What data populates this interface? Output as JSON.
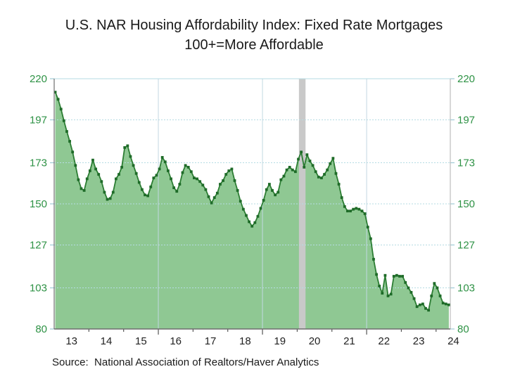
{
  "title": {
    "line1": "U.S. NAR Housing Affordability Index: Fixed Rate Mortgages",
    "line2": "100+=More Affordable"
  },
  "source": "Source:  National Association of Realtors/Haver Analytics",
  "chart_data": {
    "type": "area",
    "series_name": "NAR Housing Affordability Index, Fixed Rate Mortgages",
    "marker": "square",
    "x_frequency": "monthly",
    "x_start": "2013-01",
    "x_end": "2024-05",
    "values": [
      212.5,
      208.5,
      203,
      196.5,
      190.5,
      185,
      179,
      171.5,
      163.5,
      158.5,
      157.5,
      164,
      168.5,
      174.5,
      169.5,
      166.5,
      162.5,
      156.5,
      152.5,
      153,
      156.5,
      164,
      166.5,
      170.5,
      181.5,
      182.5,
      176.5,
      171.5,
      167,
      162,
      158,
      155,
      154.5,
      159.5,
      164.5,
      166,
      169.5,
      176,
      173.5,
      168.5,
      164,
      159,
      157,
      161,
      167.5,
      171.5,
      170.5,
      168,
      164.5,
      164,
      162.5,
      160.5,
      158,
      154,
      150.5,
      153.5,
      156,
      161,
      163,
      166.5,
      168.5,
      169.5,
      163,
      157.5,
      151.5,
      147,
      143.5,
      140,
      137.5,
      139.5,
      143,
      147.5,
      152,
      158,
      161,
      157.5,
      155,
      156.5,
      163.5,
      165.5,
      169,
      170.5,
      169,
      168,
      175,
      179,
      170.5,
      177.5,
      174,
      171.5,
      168,
      165,
      164.5,
      166.5,
      169,
      172.5,
      175.5,
      167,
      161,
      153.5,
      148.5,
      146,
      146,
      147,
      147.5,
      147,
      146,
      144.5,
      137,
      130.5,
      119,
      110.5,
      104,
      100,
      110,
      98.5,
      99.5,
      109.5,
      110,
      109.5,
      109.5,
      106,
      103,
      100.5,
      97,
      92.5,
      93.5,
      94,
      91.5,
      90.5,
      98.5,
      105.5,
      103,
      98.5,
      94.5,
      94,
      93.5
    ],
    "x_tick_labels": [
      "13",
      "14",
      "15",
      "16",
      "17",
      "18",
      "19",
      "20",
      "21",
      "22",
      "23",
      "24"
    ],
    "y_ticks": [
      80,
      103,
      127,
      150,
      173,
      197,
      220
    ],
    "ylim": [
      80,
      220
    ],
    "xlim_years": [
      2013.0,
      2024.41
    ],
    "vertical_gridline_years": [
      2016,
      2019,
      2022
    ],
    "recession_band": {
      "start_year": 2020.05,
      "end_year": 2020.24
    },
    "grid": true,
    "legend_position": "none",
    "y_axis_sides": "both",
    "colors": {
      "area": "#8fc893",
      "line": "#2c7d33",
      "marker": "#1e6b28",
      "axis_text": "#2e9245",
      "x_axis_text": "#222222",
      "gridline": "#b5dbe3",
      "v_gridline": "#c2d8e2",
      "band": "#c9c9c9",
      "frame_dark": "#6e6e6e",
      "frame_light": "#b0b0b0",
      "tick": "#555555",
      "y_stub": "#9fcbd6"
    }
  }
}
